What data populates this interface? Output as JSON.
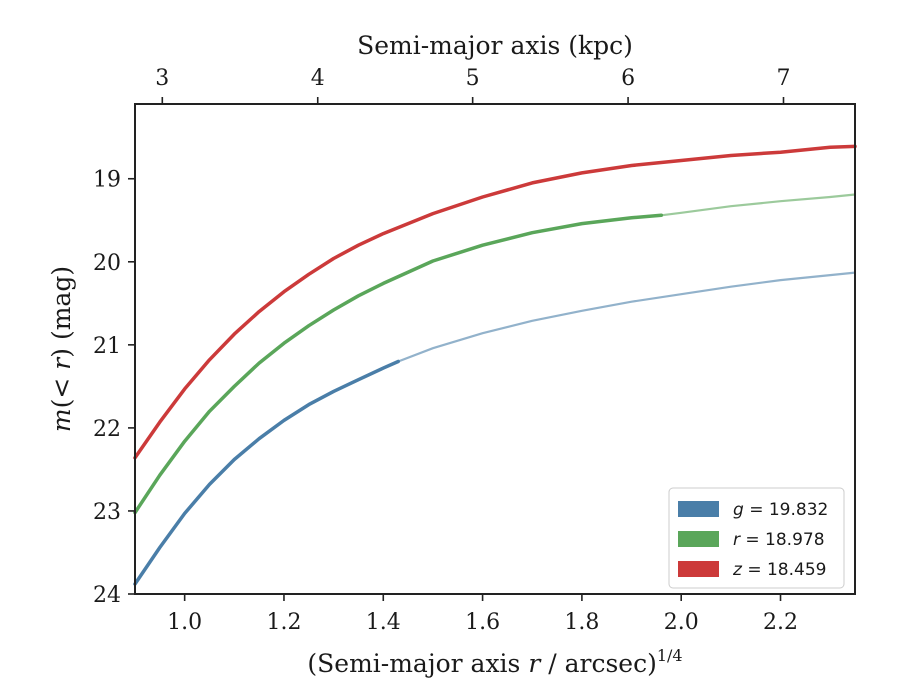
{
  "chart_data": {
    "type": "line",
    "xlabel": "(Semi-major axis r / arcsec)^1/4",
    "ylabel": "m(< r) (mag)",
    "top_xlabel": "Semi-major axis (kpc)",
    "xlim": [
      0.9,
      2.35
    ],
    "ylim": [
      24,
      18.1
    ],
    "y_inverted": true,
    "grid": false,
    "legend_position": "lower-right",
    "x_ticks": [
      1.0,
      1.2,
      1.4,
      1.6,
      1.8,
      2.0,
      2.2
    ],
    "x_tick_labels": [
      "1.0",
      "1.2",
      "1.4",
      "1.6",
      "1.8",
      "2.0",
      "2.2"
    ],
    "y_ticks": [
      19,
      20,
      21,
      22,
      23,
      24
    ],
    "y_tick_labels": [
      "19",
      "20",
      "21",
      "22",
      "23",
      "24"
    ],
    "top_ticks": [
      {
        "x": 0.955,
        "label": "3"
      },
      {
        "x": 1.268,
        "label": "4"
      },
      {
        "x": 1.58,
        "label": "5"
      },
      {
        "x": 1.893,
        "label": "6"
      },
      {
        "x": 2.206,
        "label": "7"
      }
    ],
    "series": [
      {
        "name": "g = 19.832",
        "label_var": "g",
        "label_value": "19.832",
        "color": "#4a7ea8",
        "measured_until_x": 1.43,
        "x": [
          0.9,
          0.95,
          1.0,
          1.05,
          1.1,
          1.15,
          1.2,
          1.25,
          1.3,
          1.35,
          1.4,
          1.43,
          1.5,
          1.6,
          1.7,
          1.8,
          1.9,
          2.0,
          2.1,
          2.2,
          2.3,
          2.35
        ],
        "y": [
          23.88,
          23.44,
          23.03,
          22.68,
          22.38,
          22.13,
          21.91,
          21.72,
          21.56,
          21.42,
          21.28,
          21.2,
          21.04,
          20.86,
          20.71,
          20.59,
          20.48,
          20.39,
          20.3,
          20.22,
          20.16,
          20.13
        ]
      },
      {
        "name": "r = 18.978",
        "label_var": "r",
        "label_value": "18.978",
        "color": "#5aa65a",
        "measured_until_x": 1.96,
        "x": [
          0.9,
          0.95,
          1.0,
          1.05,
          1.1,
          1.15,
          1.2,
          1.25,
          1.3,
          1.35,
          1.4,
          1.5,
          1.6,
          1.7,
          1.8,
          1.9,
          1.96,
          2.0,
          2.1,
          2.2,
          2.3,
          2.35
        ],
        "y": [
          23.02,
          22.57,
          22.16,
          21.8,
          21.5,
          21.22,
          20.98,
          20.77,
          20.58,
          20.41,
          20.26,
          19.99,
          19.8,
          19.65,
          19.54,
          19.47,
          19.44,
          19.41,
          19.33,
          19.27,
          19.22,
          19.19
        ]
      },
      {
        "name": "z = 18.459",
        "label_var": "z",
        "label_value": "18.459",
        "color": "#cc3a3a",
        "measured_until_x": 2.35,
        "x": [
          0.9,
          0.95,
          1.0,
          1.05,
          1.1,
          1.15,
          1.2,
          1.25,
          1.3,
          1.35,
          1.4,
          1.5,
          1.6,
          1.7,
          1.8,
          1.9,
          2.0,
          2.1,
          2.2,
          2.3,
          2.35
        ],
        "y": [
          22.36,
          21.93,
          21.53,
          21.18,
          20.87,
          20.6,
          20.36,
          20.15,
          19.96,
          19.8,
          19.66,
          19.42,
          19.22,
          19.05,
          18.93,
          18.84,
          18.78,
          18.72,
          18.68,
          18.62,
          18.61
        ]
      }
    ]
  }
}
